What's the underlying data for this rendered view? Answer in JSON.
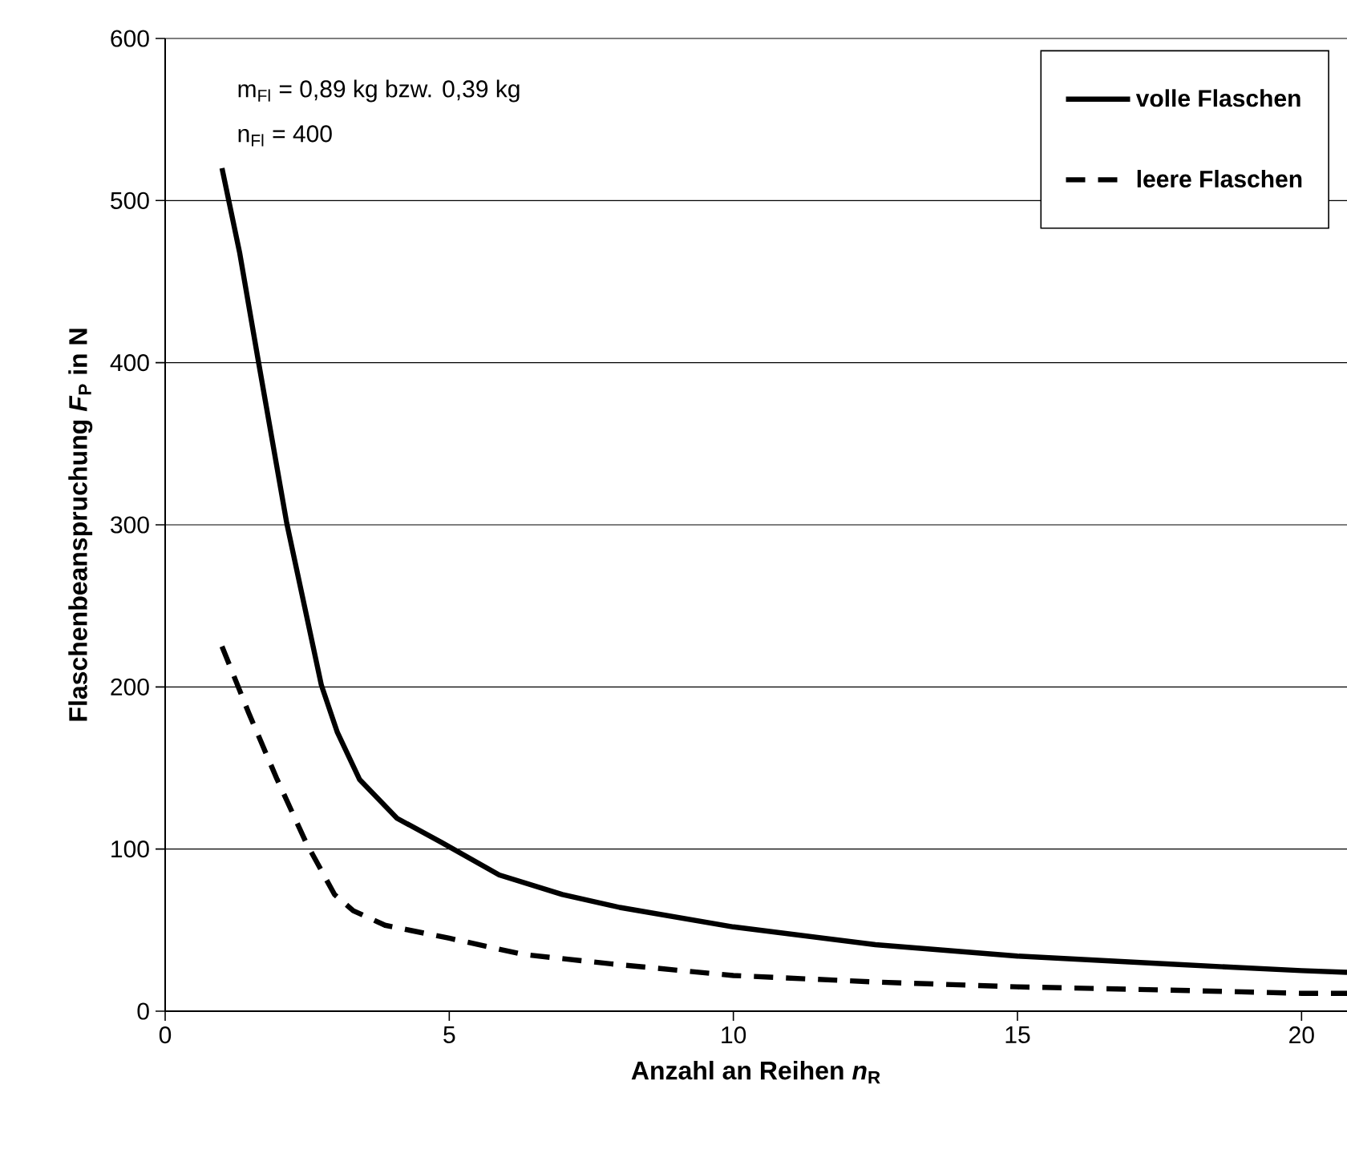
{
  "chart_data": {
    "type": "line",
    "xlabel": "Anzahl an Reihen *n*$_{R}$",
    "ylabel": "Flaschenbeanspruchung *F*$_{P}$ in N",
    "annotations": [
      "m$_{Fl}$ = 0,89 kg bzw. 0,39 kg",
      "n$_{Fl}$ = 400"
    ],
    "xlim": [
      0,
      20.8
    ],
    "xticks": [
      0,
      5,
      10,
      15,
      20
    ],
    "ylim": [
      0,
      600
    ],
    "yticks": [
      0,
      100,
      200,
      300,
      400,
      500,
      600
    ],
    "grid": "y",
    "legend": "top right",
    "marker": "none",
    "series": [
      {
        "name": "volle Flaschen",
        "color": "#000000",
        "line_style": "solid",
        "x": [
          1,
          1.31,
          1.64,
          2.14,
          2.75,
          3.03,
          3.42,
          4.08,
          4.87,
          5.88,
          6.99,
          8,
          10,
          12.5,
          15,
          17.7,
          20,
          20.8
        ],
        "values": [
          520,
          468,
          401,
          301,
          201,
          172,
          143,
          119,
          104,
          84,
          72,
          64,
          52,
          41,
          34,
          29,
          25,
          24
        ]
      },
      {
        "name": "leere Flaschen",
        "color": "#000000",
        "line_style": "dashed",
        "x": [
          1,
          1.47,
          1.97,
          2.48,
          2.98,
          3.31,
          3.87,
          5,
          6.3,
          7.9,
          10,
          12.5,
          15,
          17.7,
          20,
          20.8
        ],
        "values": [
          225,
          184,
          143,
          104,
          72,
          62,
          53,
          45,
          35,
          29,
          22,
          18,
          15,
          13,
          11,
          11
        ]
      }
    ]
  }
}
